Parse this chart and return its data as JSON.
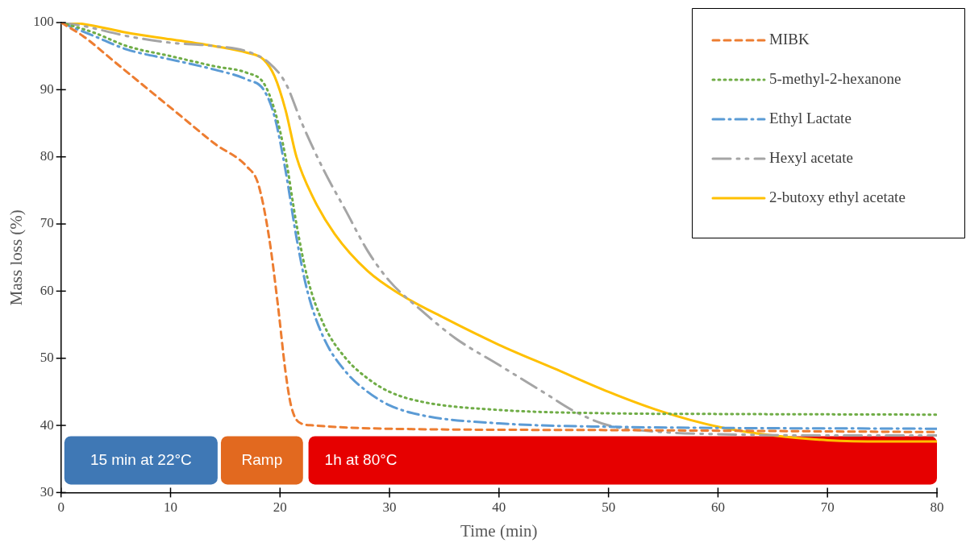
{
  "chart_data": {
    "type": "line",
    "xlabel": "Time (min)",
    "ylabel": "Mass loss (%)",
    "xlim": [
      0,
      80
    ],
    "ylim": [
      30,
      100
    ],
    "xticks": [
      0,
      10,
      20,
      30,
      40,
      50,
      60,
      70,
      80
    ],
    "yticks": [
      30,
      40,
      50,
      60,
      70,
      80,
      90,
      100
    ],
    "grid": false,
    "legend": "top right",
    "marker": "none",
    "series": [
      {
        "name": "MIBK",
        "color": "#ed7d31",
        "line_style": "dashed",
        "x": [
          0,
          2,
          5,
          8,
          11,
          14,
          17,
          18,
          19,
          19.8,
          20.5,
          21,
          21.7,
          23,
          30,
          50,
          80
        ],
        "values": [
          100,
          98,
          94,
          90,
          86,
          82,
          78.5,
          76,
          68,
          58,
          48,
          43,
          40.5,
          40,
          39.5,
          39.3,
          39
        ]
      },
      {
        "name": "5-methyl-2-hexanone",
        "color": "#70ad47",
        "line_style": "dotted",
        "x": [
          0,
          3,
          6,
          10,
          14,
          17,
          18.5,
          19.5,
          20.5,
          21.5,
          22.5,
          24,
          26,
          28,
          30,
          33,
          40,
          50,
          60,
          80
        ],
        "values": [
          100,
          98.5,
          96.5,
          95,
          93.5,
          92.5,
          91,
          87,
          80,
          70,
          62,
          55,
          50,
          47,
          45,
          43.5,
          42.3,
          41.8,
          41.7,
          41.6
        ]
      },
      {
        "name": "Ethyl Lactate",
        "color": "#5b9bd5",
        "line_style": "dashdot",
        "x": [
          0,
          3,
          6,
          10,
          14,
          17,
          18.5,
          19.5,
          20.5,
          21.5,
          22.5,
          24,
          26,
          28,
          30,
          33,
          40,
          50,
          80
        ],
        "values": [
          100,
          98,
          96,
          94.5,
          93,
          91.5,
          90,
          86,
          78,
          68,
          60,
          53,
          48,
          45,
          43,
          41.5,
          40.3,
          39.8,
          39.5
        ]
      },
      {
        "name": "Hexyl acetate",
        "color": "#a5a5a5",
        "line_style": "dashdotdot",
        "x": [
          0,
          2,
          6,
          10,
          14,
          17,
          19,
          20.5,
          22,
          24,
          26,
          28,
          30,
          33,
          36,
          40,
          44,
          47,
          50,
          55,
          60,
          70,
          80
        ],
        "values": [
          100,
          99.5,
          98,
          97,
          96.5,
          95.7,
          94,
          91,
          85,
          78,
          72,
          66,
          61.5,
          57,
          53,
          49,
          45,
          42,
          40,
          39,
          38.7,
          38.5,
          38.5
        ]
      },
      {
        "name": "2-butoxy ethyl acetate",
        "color": "#ffc000",
        "line_style": "solid",
        "x": [
          0,
          2,
          6,
          10,
          14,
          17,
          18.5,
          19.5,
          20.5,
          21.5,
          23,
          25,
          28,
          31,
          35,
          40,
          45,
          50,
          55,
          60,
          65,
          70,
          75,
          80
        ],
        "values": [
          100,
          99.8,
          98.5,
          97.5,
          96.5,
          95.5,
          94.5,
          92,
          87,
          80,
          74,
          68.5,
          63,
          59.5,
          56,
          52,
          48.5,
          45,
          42,
          39.8,
          38.5,
          37.8,
          37.6,
          37.6
        ]
      }
    ],
    "bands": [
      {
        "axis": "x",
        "from": 0.3,
        "to": 14.3,
        "label": "15 min at 22°C",
        "color": "#3f78b5"
      },
      {
        "axis": "x",
        "from": 14.6,
        "to": 22.1,
        "label": "Ramp",
        "color": "#e2691f"
      },
      {
        "axis": "x",
        "from": 22.6,
        "to": 80,
        "label": "1h at 80°C",
        "color": "#e60000"
      }
    ]
  }
}
